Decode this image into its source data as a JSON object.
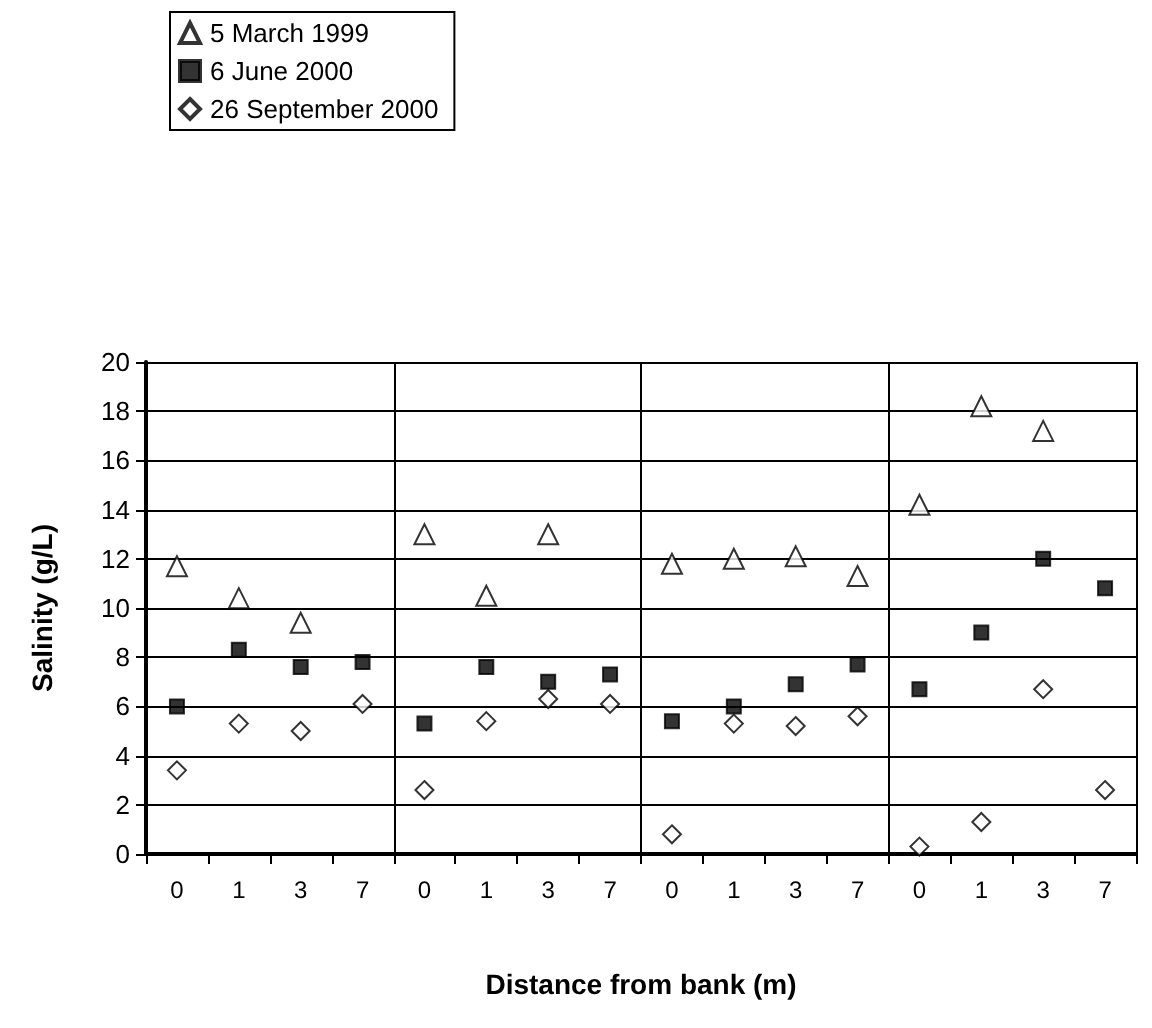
{
  "chart_data": {
    "type": "scatter",
    "xlabel": "Distance from bank (m)",
    "ylabel": "Salinity (g/L)",
    "categories": [
      "0",
      "1",
      "3",
      "7",
      "0",
      "1",
      "3",
      "7",
      "0",
      "1",
      "3",
      "7",
      "0",
      "1",
      "3",
      "7"
    ],
    "ylim": [
      0,
      20
    ],
    "yticks": [
      0,
      2,
      4,
      6,
      8,
      10,
      12,
      14,
      16,
      18,
      20
    ],
    "grid": true,
    "legend": "top left",
    "series": [
      {
        "name": "5 March 1999",
        "color": "#000000",
        "marker": "triangle",
        "values": [
          11.7,
          10.4,
          9.4,
          null,
          13.0,
          10.5,
          13.0,
          null,
          11.8,
          12.0,
          12.1,
          11.3,
          14.2,
          18.2,
          17.2,
          null
        ]
      },
      {
        "name": "6 June 2000",
        "color": "#000000",
        "marker": "square",
        "values": [
          6.0,
          8.3,
          7.6,
          7.8,
          5.3,
          7.6,
          7.0,
          7.3,
          5.4,
          6.0,
          6.9,
          7.7,
          6.7,
          9.0,
          12.0,
          10.8
        ]
      },
      {
        "name": "26 September 2000",
        "color": "#000000",
        "marker": "diamond",
        "values": [
          3.4,
          5.3,
          5.0,
          6.1,
          2.6,
          5.4,
          6.3,
          6.1,
          0.8,
          5.3,
          5.2,
          5.6,
          0.3,
          1.3,
          6.7,
          2.6
        ]
      }
    ]
  }
}
